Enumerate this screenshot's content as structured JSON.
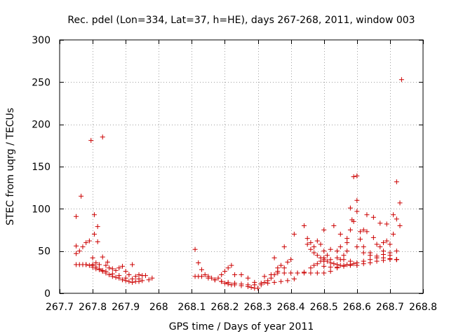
{
  "chart_data": {
    "type": "scatter",
    "title": "Rec. pdel (Lon=334, Lat=37, h=HE), days 267-268, 2011, window 003",
    "xlabel": "GPS time / Days of year 2011",
    "ylabel": "STEC from uqrg / TECUs",
    "xlim": [
      267.7,
      268.8
    ],
    "ylim": [
      0,
      300
    ],
    "x_ticks": [
      267.7,
      267.8,
      267.9,
      268.0,
      268.1,
      268.2,
      268.3,
      268.4,
      268.5,
      268.6,
      268.7,
      268.8
    ],
    "x_tick_labels": [
      "267.7",
      "267.8",
      "267.9",
      "268",
      "268.1",
      "268.2",
      "268.3",
      "268.4",
      "268.5",
      "268.6",
      "268.7",
      "268.8"
    ],
    "y_ticks": [
      0,
      50,
      100,
      150,
      200,
      250,
      300
    ],
    "y_tick_labels": [
      "0",
      "50",
      "100",
      "150",
      "200",
      "250",
      "300"
    ],
    "grid": true,
    "marker": "+",
    "color": "#cc0000",
    "series": [
      {
        "name": "STEC",
        "points": [
          [
            267.75,
            91
          ],
          [
            267.75,
            56
          ],
          [
            267.75,
            47
          ],
          [
            267.75,
            34
          ],
          [
            267.76,
            50
          ],
          [
            267.76,
            34
          ],
          [
            267.765,
            115
          ],
          [
            267.77,
            55
          ],
          [
            267.77,
            34
          ],
          [
            267.78,
            60
          ],
          [
            267.78,
            34
          ],
          [
            267.79,
            62
          ],
          [
            267.795,
            181
          ],
          [
            267.8,
            34
          ],
          [
            267.8,
            42
          ],
          [
            267.805,
            70
          ],
          [
            267.805,
            93
          ],
          [
            267.81,
            36
          ],
          [
            267.815,
            79
          ],
          [
            267.815,
            61
          ],
          [
            267.82,
            34
          ],
          [
            267.83,
            185
          ],
          [
            267.83,
            43
          ],
          [
            267.83,
            27
          ],
          [
            267.84,
            33
          ],
          [
            267.845,
            37
          ],
          [
            267.85,
            30
          ],
          [
            267.86,
            29
          ],
          [
            267.87,
            27
          ],
          [
            267.88,
            30
          ],
          [
            267.89,
            32
          ],
          [
            267.9,
            26
          ],
          [
            267.91,
            22
          ],
          [
            267.92,
            34
          ],
          [
            267.93,
            20
          ],
          [
            267.94,
            22
          ],
          [
            267.95,
            21
          ],
          [
            267.96,
            21
          ],
          [
            267.97,
            16
          ],
          [
            267.98,
            18
          ],
          [
            267.78,
            34
          ],
          [
            267.79,
            33
          ],
          [
            267.8,
            31
          ],
          [
            267.81,
            29
          ],
          [
            267.82,
            28
          ],
          [
            267.83,
            26
          ],
          [
            267.84,
            24
          ],
          [
            267.85,
            22
          ],
          [
            267.86,
            20
          ],
          [
            267.87,
            19
          ],
          [
            267.88,
            18
          ],
          [
            267.89,
            16
          ],
          [
            267.9,
            15
          ],
          [
            267.91,
            14
          ],
          [
            267.92,
            13
          ],
          [
            267.93,
            14
          ],
          [
            267.94,
            14
          ],
          [
            267.95,
            15
          ],
          [
            267.8,
            33
          ],
          [
            267.81,
            31
          ],
          [
            267.82,
            29
          ],
          [
            267.84,
            26
          ],
          [
            267.86,
            23
          ],
          [
            267.88,
            21
          ],
          [
            267.9,
            18
          ],
          [
            267.92,
            17
          ],
          [
            267.94,
            17
          ],
          [
            268.11,
            52
          ],
          [
            268.12,
            36
          ],
          [
            268.11,
            20
          ],
          [
            268.12,
            20
          ],
          [
            268.13,
            28
          ],
          [
            268.14,
            22
          ],
          [
            268.15,
            20
          ],
          [
            268.16,
            18
          ],
          [
            268.17,
            16
          ],
          [
            268.18,
            18
          ],
          [
            268.19,
            22
          ],
          [
            268.2,
            26
          ],
          [
            268.21,
            30
          ],
          [
            268.22,
            33
          ],
          [
            268.23,
            22
          ],
          [
            268.25,
            22
          ],
          [
            268.27,
            18
          ],
          [
            268.29,
            13
          ],
          [
            268.13,
            20
          ],
          [
            268.15,
            18
          ],
          [
            268.17,
            16
          ],
          [
            268.19,
            14
          ],
          [
            268.2,
            12
          ],
          [
            268.21,
            11
          ],
          [
            268.22,
            10
          ],
          [
            268.23,
            10
          ],
          [
            268.25,
            9
          ],
          [
            268.27,
            8
          ],
          [
            268.28,
            7
          ],
          [
            268.29,
            6
          ],
          [
            268.3,
            6
          ],
          [
            268.19,
            14
          ],
          [
            268.21,
            13
          ],
          [
            268.23,
            12
          ],
          [
            268.25,
            11
          ],
          [
            268.27,
            10
          ],
          [
            268.29,
            10
          ],
          [
            268.31,
            10
          ],
          [
            268.33,
            12
          ],
          [
            268.35,
            13
          ],
          [
            268.37,
            14
          ],
          [
            268.39,
            15
          ],
          [
            268.41,
            17
          ],
          [
            268.31,
            12
          ],
          [
            268.32,
            13
          ],
          [
            268.33,
            15
          ],
          [
            268.34,
            18
          ],
          [
            268.35,
            22
          ],
          [
            268.36,
            26
          ],
          [
            268.37,
            33
          ],
          [
            268.38,
            30
          ],
          [
            268.39,
            37
          ],
          [
            268.4,
            40
          ],
          [
            268.38,
            55
          ],
          [
            268.35,
            42
          ],
          [
            268.36,
            30
          ],
          [
            268.41,
            70
          ],
          [
            268.44,
            80
          ],
          [
            268.42,
            24
          ],
          [
            268.44,
            24
          ],
          [
            268.46,
            24
          ],
          [
            268.48,
            24
          ],
          [
            268.5,
            24
          ],
          [
            268.52,
            26
          ],
          [
            268.54,
            30
          ],
          [
            268.32,
            20
          ],
          [
            268.34,
            22
          ],
          [
            268.36,
            24
          ],
          [
            268.38,
            24
          ],
          [
            268.4,
            24
          ],
          [
            268.42,
            24
          ],
          [
            268.44,
            25
          ],
          [
            268.45,
            65
          ],
          [
            268.46,
            60
          ],
          [
            268.47,
            55
          ],
          [
            268.48,
            62
          ],
          [
            268.49,
            58
          ],
          [
            268.5,
            50
          ],
          [
            268.45,
            58
          ],
          [
            268.46,
            52
          ],
          [
            268.47,
            48
          ],
          [
            268.48,
            45
          ],
          [
            268.49,
            42
          ],
          [
            268.5,
            40
          ],
          [
            268.51,
            38
          ],
          [
            268.52,
            36
          ],
          [
            268.53,
            35
          ],
          [
            268.54,
            34
          ],
          [
            268.55,
            33
          ],
          [
            268.56,
            33
          ],
          [
            268.57,
            34
          ],
          [
            268.58,
            34
          ],
          [
            268.59,
            35
          ],
          [
            268.46,
            30
          ],
          [
            268.47,
            33
          ],
          [
            268.48,
            35
          ],
          [
            268.49,
            38
          ],
          [
            268.5,
            42
          ],
          [
            268.51,
            45
          ],
          [
            268.5,
            75
          ],
          [
            268.52,
            52
          ],
          [
            268.53,
            80
          ],
          [
            268.54,
            50
          ],
          [
            268.55,
            70
          ],
          [
            268.55,
            40
          ],
          [
            268.56,
            45
          ],
          [
            268.57,
            50
          ],
          [
            268.57,
            65
          ],
          [
            268.58,
            75
          ],
          [
            268.58,
            101
          ],
          [
            268.585,
            87
          ],
          [
            268.59,
            85
          ],
          [
            268.59,
            138
          ],
          [
            268.6,
            139
          ],
          [
            268.6,
            110
          ],
          [
            268.6,
            97
          ],
          [
            268.61,
            73
          ],
          [
            268.61,
            64
          ],
          [
            268.62,
            75
          ],
          [
            268.62,
            55
          ],
          [
            268.63,
            93
          ],
          [
            268.63,
            73
          ],
          [
            268.64,
            48
          ],
          [
            268.65,
            90
          ],
          [
            268.65,
            66
          ],
          [
            268.66,
            58
          ],
          [
            268.67,
            83
          ],
          [
            268.67,
            55
          ],
          [
            268.68,
            50
          ],
          [
            268.68,
            60
          ],
          [
            268.69,
            62
          ],
          [
            268.69,
            82
          ],
          [
            268.7,
            58
          ],
          [
            268.7,
            45
          ],
          [
            268.71,
            93
          ],
          [
            268.71,
            70
          ],
          [
            268.72,
            40
          ],
          [
            268.72,
            88
          ],
          [
            268.72,
            132
          ],
          [
            268.73,
            107
          ],
          [
            268.73,
            80
          ],
          [
            268.735,
            253
          ],
          [
            268.5,
            38
          ],
          [
            268.52,
            40
          ],
          [
            268.54,
            42
          ],
          [
            268.56,
            40
          ],
          [
            268.58,
            38
          ],
          [
            268.6,
            36
          ],
          [
            268.62,
            38
          ],
          [
            268.64,
            40
          ],
          [
            268.66,
            42
          ],
          [
            268.68,
            42
          ],
          [
            268.7,
            41
          ],
          [
            268.72,
            40
          ],
          [
            268.5,
            32
          ],
          [
            268.52,
            31
          ],
          [
            268.54,
            31
          ],
          [
            268.56,
            32
          ],
          [
            268.58,
            33
          ],
          [
            268.6,
            33
          ],
          [
            268.62,
            35
          ],
          [
            268.64,
            36
          ],
          [
            268.66,
            38
          ],
          [
            268.68,
            39
          ],
          [
            268.7,
            40
          ],
          [
            268.72,
            40
          ],
          [
            268.55,
            55
          ],
          [
            268.57,
            60
          ],
          [
            268.6,
            55
          ],
          [
            268.62,
            48
          ],
          [
            268.64,
            45
          ],
          [
            268.66,
            44
          ],
          [
            268.68,
            46
          ],
          [
            268.7,
            48
          ],
          [
            268.72,
            50
          ]
        ]
      }
    ]
  }
}
